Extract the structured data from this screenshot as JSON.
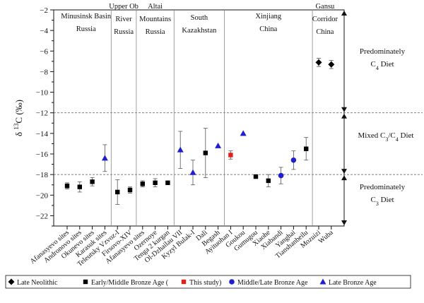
{
  "chart_data": {
    "type": "scatter",
    "ylabel": "δ 13C (‰)",
    "ylabel_parts": {
      "delta": "δ",
      "superscript": "13",
      "rest": "C (‰)"
    },
    "ylim": [
      -23,
      -2
    ],
    "yticks": [
      -22,
      -20,
      -18,
      -16,
      -14,
      -12,
      -10,
      -8,
      -6,
      -4,
      -2
    ],
    "thresholds": [
      -12,
      -18
    ],
    "categories": [
      "Afanasyevo sites",
      "Andronovo sites",
      "Okunevo sites",
      "Karasuk sites",
      "Teleutsky Vzvoz-I",
      "Firsovo-XIV",
      "Afanasyevo sites",
      "Ozernoye",
      "Tenga 2 kurgan",
      "Ol-Dzhailau VII",
      "Kyzyl Bulak-I",
      "Dali",
      "Begash",
      "Ayituohan I",
      "Goukou",
      "Gumugou",
      "Xiaohe",
      "Xiabandi",
      "Yanghai",
      "Tianshanbeilu",
      "Mozuizi",
      "Wuba"
    ],
    "series": [
      {
        "name": "Late Neolithic",
        "marker": "diamond",
        "color": "#000000",
        "points": [
          {
            "i": 20,
            "y": -7.1,
            "err": 0.4
          },
          {
            "i": 21,
            "y": -7.3,
            "err": 0.4
          }
        ]
      },
      {
        "name": "Early/Middle Bronze Age",
        "marker": "square",
        "color": "#000000",
        "points": [
          {
            "i": 0,
            "y": -19.1,
            "err": 0.3
          },
          {
            "i": 1,
            "y": -19.2,
            "err": 0.5
          },
          {
            "i": 2,
            "y": -18.7,
            "err": 0.4
          },
          {
            "i": 4,
            "y": -19.7,
            "err": 1.2
          },
          {
            "i": 5,
            "y": -19.5,
            "err": 0.3
          },
          {
            "i": 6,
            "y": -18.9,
            "err": 0.3
          },
          {
            "i": 7,
            "y": -18.8,
            "err": 0.4
          },
          {
            "i": 8,
            "y": -18.8,
            "err": 0
          },
          {
            "i": 11,
            "y": -15.9,
            "err": 2.4
          },
          {
            "i": 15,
            "y": -18.2,
            "err": 0
          },
          {
            "i": 16,
            "y": -18.6,
            "err": 0.6
          },
          {
            "i": 19,
            "y": -15.5,
            "err": 1.1
          }
        ]
      },
      {
        "name": "This study",
        "marker": "square",
        "color": "#e0201b",
        "points": [
          {
            "i": 13,
            "y": -16.1,
            "err": 0.4
          }
        ]
      },
      {
        "name": "Middle/Late Bronze Age",
        "marker": "circle",
        "color": "#1f1fd0",
        "points": [
          {
            "i": 17,
            "y": -18.1,
            "err": 0.8
          },
          {
            "i": 18,
            "y": -16.6,
            "err": 0.9
          }
        ]
      },
      {
        "name": "Late Bronze Age",
        "marker": "triangle",
        "color": "#1f1fd0",
        "points": [
          {
            "i": 3,
            "y": -16.4,
            "err": 1.3
          },
          {
            "i": 9,
            "y": -15.6,
            "err": 1.8
          },
          {
            "i": 10,
            "y": -17.8,
            "err": 1.2
          },
          {
            "i": 12,
            "y": -15.2,
            "err": 0
          },
          {
            "i": 14,
            "y": -14.0,
            "err": 0
          }
        ]
      }
    ],
    "regions": [
      {
        "lines": [
          "Minusinsk Basin",
          "Russia"
        ],
        "from": 0,
        "to": 3
      },
      {
        "lines": [
          "Upper Ob",
          "River",
          "Russia"
        ],
        "from": 4,
        "to": 5
      },
      {
        "lines": [
          "Altai",
          "Mountains",
          "Russia"
        ],
        "from": 6,
        "to": 8
      },
      {
        "lines": [
          "South",
          "Kazakhstan"
        ],
        "from": 9,
        "to": 12
      },
      {
        "lines": [
          "Xinjiang",
          "China"
        ],
        "from": 13,
        "to": 19
      },
      {
        "lines": [
          "Gansu",
          "Corridor",
          "China"
        ],
        "from": 20,
        "to": 21
      }
    ],
    "region_dividers_after": [
      3,
      5,
      8,
      12,
      19
    ],
    "zones": [
      {
        "lines": [
          "Predominately",
          "C4 Diet"
        ],
        "sub_index": 1,
        "range": [
          -12,
          -2
        ]
      },
      {
        "lines": [
          "Mixed C3/C4 Diet"
        ],
        "range": [
          -18,
          -12
        ]
      },
      {
        "lines": [
          "Predominately",
          "C3 Diet"
        ],
        "sub_index": 1,
        "range": [
          -23,
          -18
        ]
      }
    ],
    "zone_text": {
      "c4": [
        "Predominately",
        "C",
        "4",
        " Diet"
      ],
      "mixed": [
        "Mixed C",
        "3",
        "/C",
        "4",
        " Diet"
      ],
      "c3": [
        "Predominately",
        "C",
        "3",
        " Diet"
      ]
    },
    "legend": [
      {
        "label": "Late Neolithic",
        "marker": "diamond",
        "color": "#000000"
      },
      {
        "label": "Early/Middle Bronze Age (",
        "marker": "square",
        "color": "#000000"
      },
      {
        "label": "This study)",
        "marker": "square",
        "color": "#e0201b"
      },
      {
        "label": "Middle/Late Bronze Age",
        "marker": "circle",
        "color": "#1f1fd0"
      },
      {
        "label": "Late Bronze Age",
        "marker": "triangle",
        "color": "#1f1fd0"
      }
    ],
    "legend_position": "bottom",
    "grid": false
  }
}
